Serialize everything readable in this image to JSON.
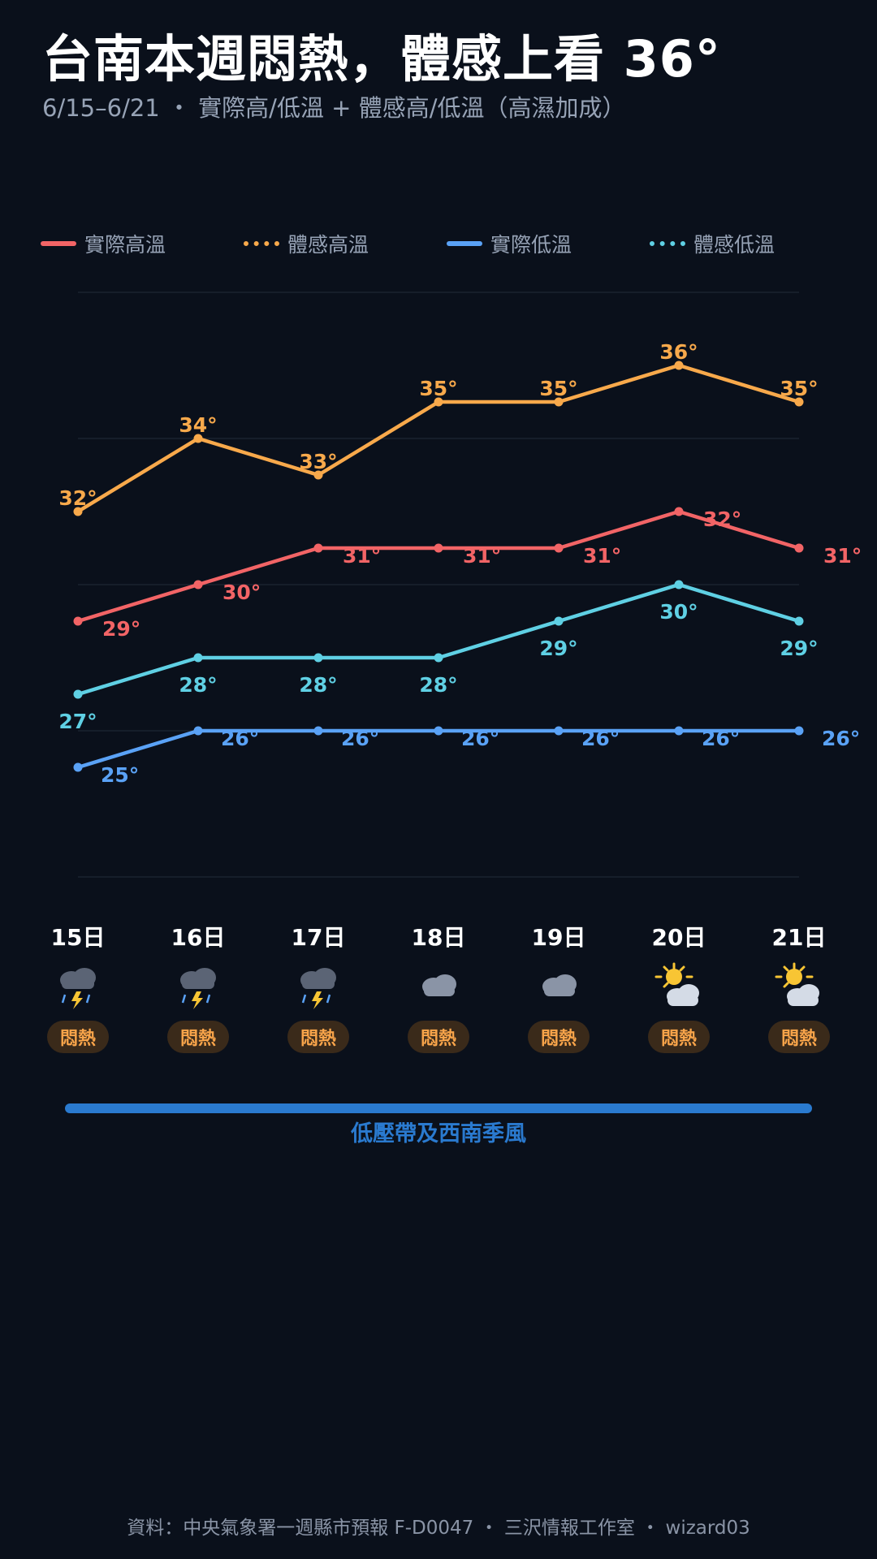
{
  "header": {
    "title": "台南本週悶熱，體感上看 36°",
    "subtitle": "6/15–6/21 ・ 實際高/低溫 + 體感高/低溫（高濕加成）"
  },
  "legend": [
    {
      "label": "實際高溫",
      "color": "#f26466",
      "style": "solid"
    },
    {
      "label": "體感高溫",
      "color": "#f8a94b",
      "style": "dotted"
    },
    {
      "label": "實際低溫",
      "color": "#5aa2f6",
      "style": "solid"
    },
    {
      "label": "體感低溫",
      "color": "#5fd0e4",
      "style": "dotted"
    }
  ],
  "chart_data": {
    "type": "line",
    "x": [
      "15日",
      "16日",
      "17日",
      "18日",
      "19日",
      "20日",
      "21日"
    ],
    "ylim": [
      22,
      38
    ],
    "grid": true,
    "legend_position": "top",
    "series": [
      {
        "name": "實際高溫",
        "color": "#f26466",
        "values": [
          29,
          30,
          31,
          31,
          31,
          32,
          31
        ]
      },
      {
        "name": "體感高溫",
        "color": "#f8a94b",
        "values": [
          32,
          34,
          33,
          35,
          35,
          36,
          35
        ]
      },
      {
        "name": "實際低溫",
        "color": "#5aa2f6",
        "values": [
          25,
          26,
          26,
          26,
          26,
          26,
          26
        ]
      },
      {
        "name": "體感低溫",
        "color": "#5fd0e4",
        "values": [
          27,
          28,
          28,
          28,
          29,
          30,
          29
        ]
      }
    ],
    "degree_suffix": "°"
  },
  "days": [
    {
      "label": "15日",
      "icon": "thunderstorm-icon",
      "badge": "悶熱"
    },
    {
      "label": "16日",
      "icon": "thunderstorm-icon",
      "badge": "悶熱"
    },
    {
      "label": "17日",
      "icon": "thunderstorm-icon",
      "badge": "悶熱"
    },
    {
      "label": "18日",
      "icon": "cloudy-icon",
      "badge": "悶熱"
    },
    {
      "label": "19日",
      "icon": "cloudy-icon",
      "badge": "悶熱"
    },
    {
      "label": "20日",
      "icon": "partly-sunny-icon",
      "badge": "悶熱"
    },
    {
      "label": "21日",
      "icon": "partly-sunny-icon",
      "badge": "悶熱"
    }
  ],
  "band": {
    "label": "低壓帶及西南季風",
    "color": "#2a7acf"
  },
  "footer": {
    "source": "資料：中央氣象署一週縣市預報 F-D0047 ・ 三沢情報工作室 ・ wizard03"
  }
}
